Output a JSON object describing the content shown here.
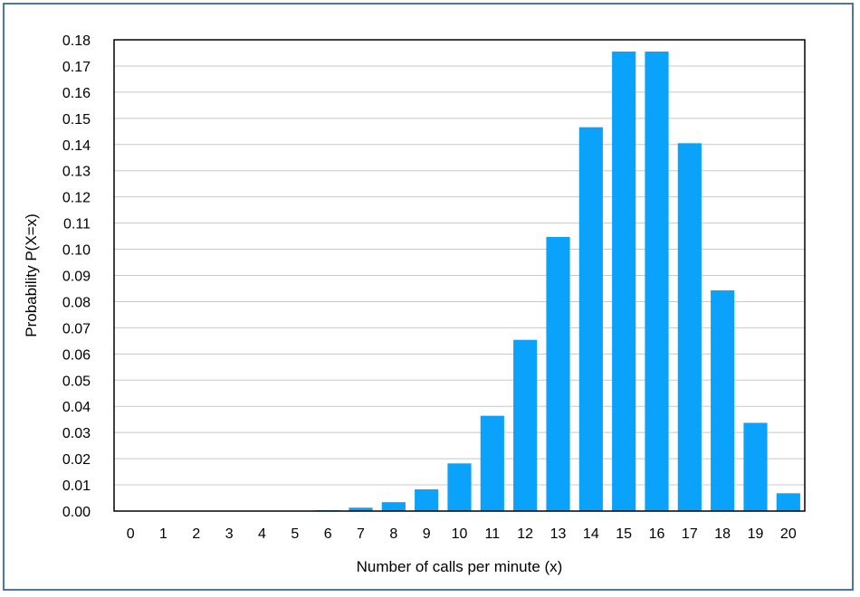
{
  "chart_data": {
    "type": "bar",
    "title": "",
    "xlabel": "Number of calls per minute (x)",
    "ylabel": "Probability P(X=x)",
    "categories": [
      "0",
      "1",
      "2",
      "3",
      "4",
      "5",
      "6",
      "7",
      "8",
      "9",
      "10",
      "11",
      "12",
      "13",
      "14",
      "15",
      "16",
      "17",
      "18",
      "19",
      "20"
    ],
    "series": [
      {
        "values": [
          0,
          0,
          0,
          0,
          0,
          0,
          0.0003,
          0.0013,
          0.0034,
          0.0083,
          0.0182,
          0.0364,
          0.0654,
          0.1047,
          0.1466,
          0.1755,
          0.1755,
          0.1405,
          0.0843,
          0.0337,
          0.0068
        ],
        "color": "#0aa2fa"
      }
    ],
    "ylim": [
      0,
      0.18
    ],
    "yticks": [
      "0.00",
      "0.01",
      "0.02",
      "0.03",
      "0.04",
      "0.05",
      "0.06",
      "0.07",
      "0.08",
      "0.09",
      "0.10",
      "0.11",
      "0.12",
      "0.13",
      "0.14",
      "0.15",
      "0.16",
      "0.17",
      "0.18"
    ],
    "grid": true,
    "gridColor": "#c8c8c8",
    "frameColor": "#4b73b5"
  }
}
